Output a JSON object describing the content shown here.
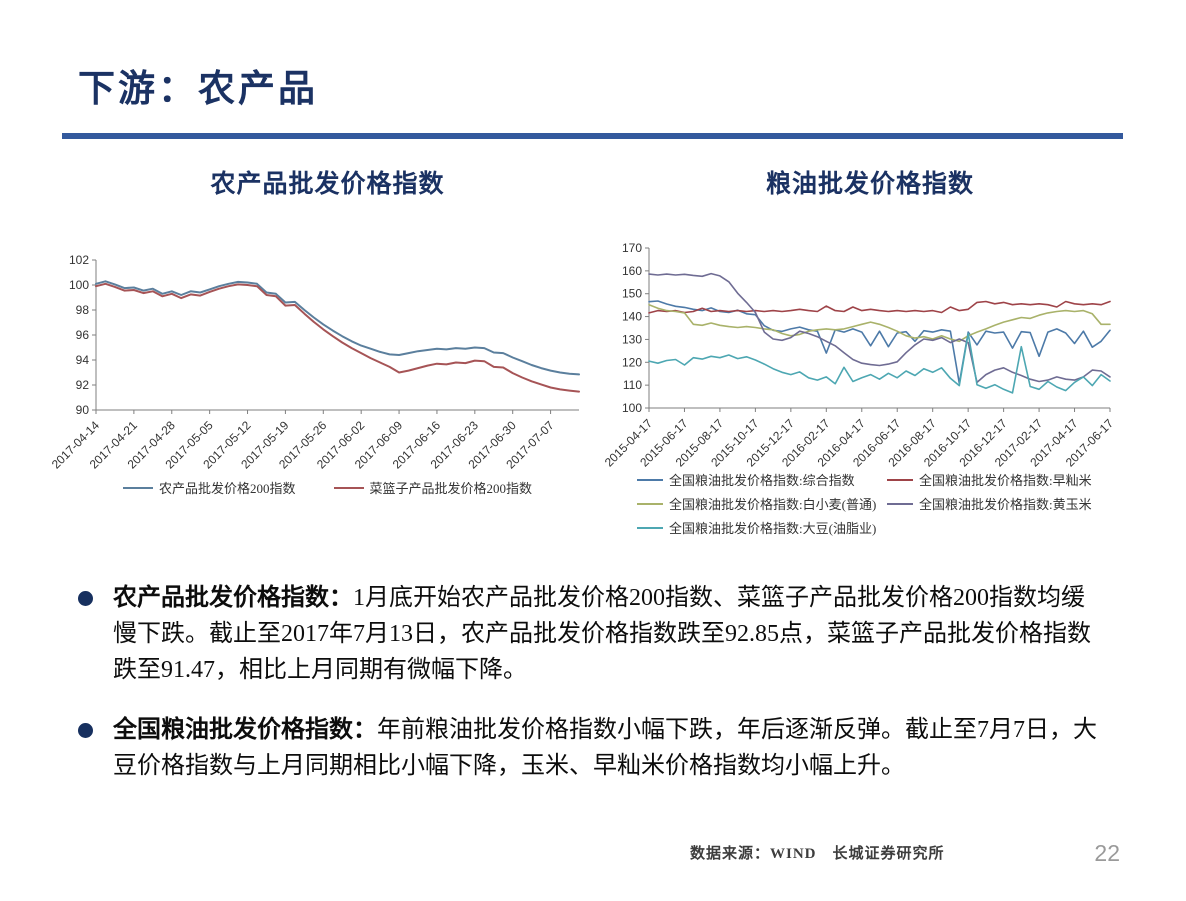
{
  "header": {
    "title": "下游：农产品"
  },
  "colors": {
    "title_navy": "#1b3263",
    "divider_blue": "#33599d",
    "bullet_dot": "#17305f",
    "axis_gray": "#7f7f7f"
  },
  "bullets": [
    {
      "lead": "农产品批发价格指数：",
      "text": "1月底开始农产品批发价格200指数、菜篮子产品批发价格200指数均缓慢下跌。截止至2017年7月13日，农产品批发价格指数跌至92.85点，菜篮子产品批发价格指数跌至91.47，相比上月同期有微幅下降。"
    },
    {
      "lead": "全国粮油批发价格指数：",
      "text": "年前粮油批发价格指数小幅下跌，年后逐渐反弹。截止至7月7日，大豆价格指数与上月同期相比小幅下降，玉米、早籼米价格指数均小幅上升。"
    }
  ],
  "footer": {
    "source": "数据来源：WIND　长城证券研究所",
    "page_number": "22"
  },
  "chart_data": [
    {
      "type": "line",
      "title": "农产品批发价格指数",
      "ylim": [
        90,
        102
      ],
      "yticks": [
        90,
        92,
        94,
        96,
        98,
        100,
        102
      ],
      "grid": false,
      "legend_position": "bottom",
      "x_tick_labels": [
        "2017-04-14",
        "2017-04-21",
        "2017-04-28",
        "2017-05-05",
        "2017-05-12",
        "2017-05-19",
        "2017-05-26",
        "2017-06-02",
        "2017-06-09",
        "2017-06-16",
        "2017-06-23",
        "2017-06-30",
        "2017-07-07"
      ],
      "label_every": 4,
      "series": [
        {
          "name": "农产品批发价格200指数",
          "color": "#5b7f9d",
          "values": [
            100.1,
            100.3,
            100.05,
            99.75,
            99.8,
            99.55,
            99.7,
            99.3,
            99.5,
            99.2,
            99.5,
            99.4,
            99.65,
            99.9,
            100.1,
            100.25,
            100.2,
            100.1,
            99.4,
            99.3,
            98.6,
            98.65,
            98.0,
            97.4,
            96.85,
            96.35,
            95.9,
            95.5,
            95.15,
            94.9,
            94.65,
            94.45,
            94.4,
            94.55,
            94.7,
            94.8,
            94.9,
            94.85,
            94.95,
            94.9,
            95.0,
            94.95,
            94.6,
            94.55,
            94.2,
            93.9,
            93.6,
            93.35,
            93.15,
            93.0,
            92.9,
            92.85
          ]
        },
        {
          "name": "菜篮子产品批发价格200指数",
          "color": "#a65456",
          "values": [
            99.9,
            100.1,
            99.85,
            99.55,
            99.6,
            99.35,
            99.5,
            99.1,
            99.3,
            98.95,
            99.25,
            99.15,
            99.45,
            99.7,
            99.9,
            100.05,
            100.0,
            99.9,
            99.2,
            99.1,
            98.35,
            98.4,
            97.7,
            97.05,
            96.45,
            95.9,
            95.4,
            94.95,
            94.55,
            94.15,
            93.8,
            93.45,
            93.0,
            93.15,
            93.35,
            93.55,
            93.7,
            93.65,
            93.8,
            93.75,
            93.95,
            93.9,
            93.45,
            93.4,
            92.95,
            92.6,
            92.3,
            92.05,
            91.8,
            91.65,
            91.55,
            91.47
          ]
        }
      ]
    },
    {
      "type": "line",
      "title": "粮油批发价格指数",
      "ylim": [
        100,
        170
      ],
      "yticks": [
        100,
        110,
        120,
        130,
        140,
        150,
        160,
        170
      ],
      "grid": false,
      "legend_position": "bottom",
      "x_tick_labels": [
        "2015-04-17",
        "2015-06-17",
        "2015-08-17",
        "2015-10-17",
        "2015-12-17",
        "2016-02-17",
        "2016-04-17",
        "2016-06-17",
        "2016-08-17",
        "2016-10-17",
        "2016-12-17",
        "2017-02-17",
        "2017-04-17",
        "2017-06-17"
      ],
      "label_every": 4,
      "series": [
        {
          "name": "全国粮油批发价格指数:综合指数",
          "color": "#4d7aa8",
          "values": [
            146.5,
            146.8,
            145.5,
            144.5,
            144.0,
            143.2,
            142.6,
            143.8,
            142.2,
            141.8,
            142.8,
            141.2,
            140.8,
            136.0,
            134.0,
            133.5,
            134.6,
            135.4,
            134.2,
            133.6,
            124.0,
            134.2,
            133.2,
            134.6,
            133.2,
            127.2,
            133.6,
            126.8,
            132.8,
            133.4,
            129.2,
            133.8,
            133.2,
            134.2,
            133.6,
            110.8,
            133.2,
            127.6,
            133.6,
            132.8,
            133.2,
            126.2,
            133.4,
            133.0,
            122.6,
            133.2,
            134.6,
            132.8,
            128.2,
            133.6,
            126.6,
            129.2,
            134.0
          ]
        },
        {
          "name": "全国粮油批发价格指数:早籼米",
          "color": "#9e4348",
          "values": [
            141.6,
            142.6,
            142.2,
            142.6,
            141.8,
            142.2,
            143.6,
            142.2,
            142.6,
            142.2,
            142.6,
            142.2,
            142.6,
            142.2,
            142.6,
            142.2,
            142.6,
            143.2,
            142.6,
            142.2,
            144.6,
            142.6,
            142.2,
            144.2,
            142.6,
            143.2,
            142.6,
            142.2,
            142.6,
            142.2,
            142.6,
            142.2,
            142.6,
            141.8,
            144.2,
            142.6,
            143.2,
            146.2,
            146.6,
            145.6,
            146.2,
            145.2,
            145.6,
            145.2,
            145.6,
            145.2,
            144.2,
            146.6,
            145.6,
            145.2,
            145.6,
            145.2,
            146.6
          ]
        },
        {
          "name": "全国粮油批发价格指数:白小麦(普通)",
          "color": "#a9b26a",
          "values": [
            145.2,
            143.6,
            142.6,
            142.2,
            141.6,
            136.6,
            136.2,
            137.2,
            136.2,
            135.6,
            135.2,
            135.6,
            135.2,
            134.6,
            134.2,
            132.6,
            131.6,
            132.2,
            133.6,
            134.2,
            134.6,
            134.2,
            134.6,
            135.6,
            136.6,
            137.6,
            136.6,
            135.2,
            133.6,
            131.6,
            130.6,
            131.2,
            130.2,
            131.6,
            130.2,
            129.2,
            131.6,
            133.2,
            134.6,
            136.2,
            137.6,
            138.6,
            139.6,
            139.2,
            140.6,
            141.6,
            142.2,
            142.6,
            142.2,
            142.6,
            141.2,
            136.6,
            136.6
          ]
        },
        {
          "name": "全国粮油批发价格指数:黄玉米",
          "color": "#6f6c93",
          "values": [
            158.6,
            158.2,
            158.6,
            158.2,
            158.5,
            158.0,
            157.6,
            158.8,
            157.8,
            155.2,
            150.2,
            146.2,
            141.8,
            133.2,
            130.2,
            129.6,
            130.8,
            133.6,
            132.6,
            131.2,
            129.2,
            127.2,
            124.2,
            121.2,
            119.6,
            119.0,
            118.6,
            119.2,
            120.2,
            124.2,
            127.6,
            130.2,
            129.6,
            130.8,
            128.6,
            130.2,
            128.6,
            111.2,
            114.6,
            116.6,
            117.6,
            115.6,
            114.2,
            112.6,
            111.6,
            112.2,
            113.6,
            112.6,
            112.2,
            113.6,
            116.6,
            116.2,
            113.6
          ]
        },
        {
          "name": "全国粮油批发价格指数:大豆(油脂业)",
          "color": "#4da7b2",
          "values": [
            120.5,
            119.6,
            120.8,
            121.2,
            118.8,
            122.0,
            121.4,
            122.6,
            122.0,
            123.2,
            121.6,
            122.4,
            121.0,
            119.2,
            117.2,
            115.6,
            114.6,
            115.8,
            113.2,
            112.2,
            113.6,
            110.6,
            117.8,
            111.6,
            113.2,
            114.6,
            112.6,
            115.2,
            113.2,
            116.2,
            114.2,
            117.2,
            115.6,
            117.6,
            113.0,
            109.8,
            132.6,
            110.2,
            108.6,
            110.2,
            108.2,
            106.6,
            126.8,
            109.4,
            108.2,
            111.6,
            109.2,
            107.6,
            111.2,
            113.6,
            109.8,
            114.6,
            111.8
          ]
        }
      ]
    }
  ]
}
